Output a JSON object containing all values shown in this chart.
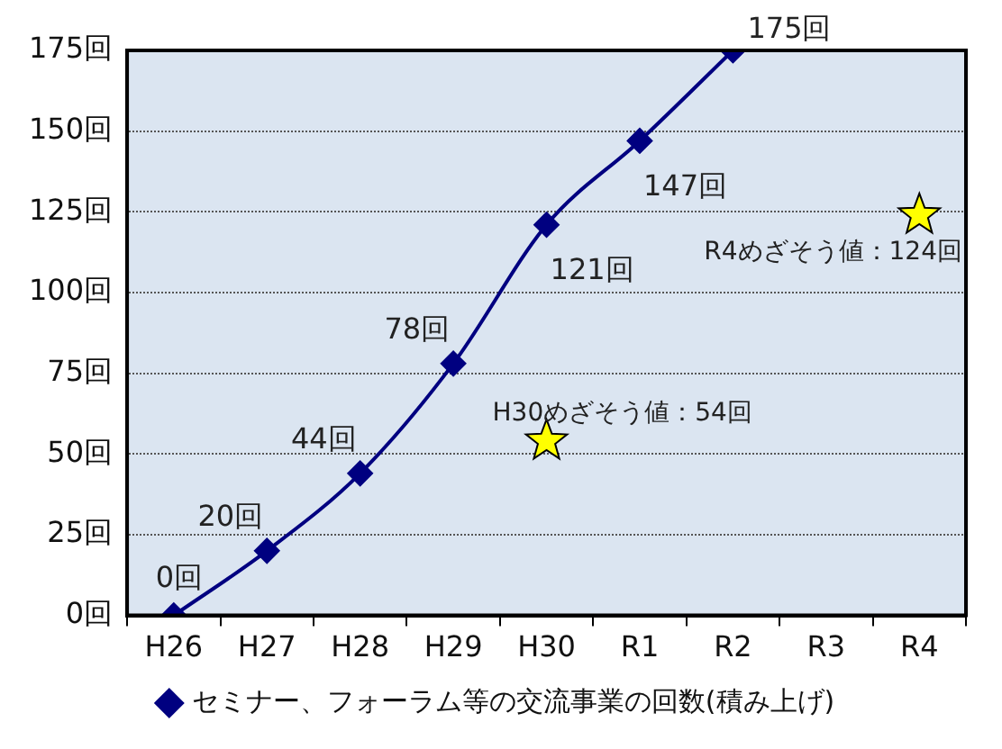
{
  "chart_data": {
    "type": "line",
    "categories": [
      "H26",
      "H27",
      "H28",
      "H29",
      "H30",
      "R1",
      "R2",
      "R3",
      "R4"
    ],
    "series": [
      {
        "name": "セミナー、フォーラム等の交流事業の回数(積み上げ)",
        "color": "#000080",
        "marker": "diamond",
        "values": [
          0,
          20,
          44,
          78,
          121,
          147,
          175,
          null,
          null
        ],
        "value_labels": [
          "0回",
          "20回",
          "44回",
          "78回",
          "121回",
          "147回",
          "175回",
          null,
          null
        ]
      },
      {
        "type": "scatter",
        "color": "#ffff00",
        "marker": "star",
        "values": [
          null,
          null,
          null,
          null,
          54,
          null,
          null,
          null,
          124
        ]
      }
    ],
    "ylim": [
      0,
      175
    ],
    "yticks": [
      {
        "value": 0,
        "label": "0回"
      },
      {
        "value": 25,
        "label": "25回"
      },
      {
        "value": 50,
        "label": "50回"
      },
      {
        "value": 75,
        "label": "75回"
      },
      {
        "value": 100,
        "label": "100回"
      },
      {
        "value": 125,
        "label": "125回"
      },
      {
        "value": 150,
        "label": "150回"
      },
      {
        "value": 175,
        "label": "175回"
      }
    ],
    "grid": "y",
    "legend": "bottom",
    "annotations": [
      {
        "text": "H30めざそう値：54回",
        "x": "H30",
        "y": 54
      },
      {
        "text": "R4めざそう値：124回",
        "x": "R4",
        "y": 124
      }
    ]
  }
}
